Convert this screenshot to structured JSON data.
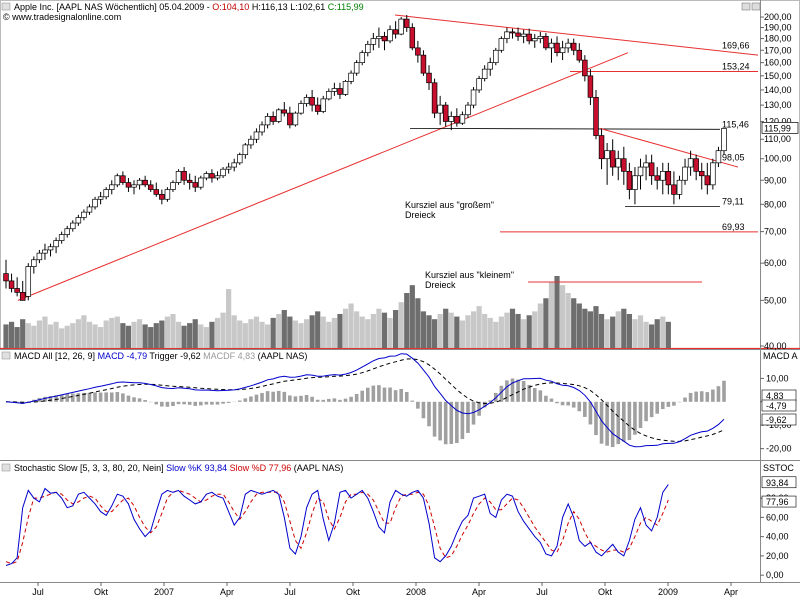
{
  "header": {
    "title_prefix": "Apple Inc. [AAPL NAS  Wöchentlich] 05.04.2009 - ",
    "open": "O:104,10",
    "high": "H:116,13",
    "low": "L:102,61",
    "close": "C:115,99",
    "source": "© www.tradesignalonline.com"
  },
  "colors": {
    "candle_up": "#ffffff",
    "candle_down": "#c8102e",
    "trendline": "#e83030",
    "macd": "#0000cc",
    "trigger": "#000000",
    "histogram": "#a0a0a0",
    "stoch_k": "#0000cc",
    "stoch_d": "#cc0000",
    "annotation_text": "#1010c0",
    "level_text": "#e83030"
  },
  "chart_data": [
    {
      "type": "candlestick",
      "panel": "price",
      "ylim": [
        40,
        205
      ],
      "yscale": "log",
      "yticks": [
        "40,00",
        "50,00",
        "60,00",
        "70,00",
        "80,00",
        "90,00",
        "100,00",
        "110,00",
        "120,00",
        "130,00",
        "140,00",
        "150,00",
        "160,00",
        "170,00",
        "180,00",
        "190,00",
        "200,00"
      ],
      "current_value": "115,99",
      "candles": [
        [
          57,
          61,
          53,
          55
        ],
        [
          55,
          57,
          52,
          53
        ],
        [
          53,
          56,
          51,
          52
        ],
        [
          52,
          55,
          50,
          50
        ],
        [
          51,
          60,
          50,
          59
        ],
        [
          59,
          62,
          57,
          61
        ],
        [
          61,
          64,
          60,
          63
        ],
        [
          63,
          66,
          61,
          64
        ],
        [
          64,
          66,
          62,
          65
        ],
        [
          65,
          68,
          63,
          67
        ],
        [
          67,
          70,
          66,
          69
        ],
        [
          69,
          72,
          68,
          71
        ],
        [
          71,
          74,
          70,
          73
        ],
        [
          73,
          76,
          72,
          75
        ],
        [
          75,
          78,
          74,
          77
        ],
        [
          77,
          80,
          76,
          79
        ],
        [
          79,
          83,
          78,
          82
        ],
        [
          82,
          85,
          80,
          83
        ],
        [
          83,
          87,
          82,
          86
        ],
        [
          86,
          90,
          84,
          88
        ],
        [
          88,
          93,
          87,
          92
        ],
        [
          92,
          94,
          88,
          89
        ],
        [
          89,
          91,
          85,
          87
        ],
        [
          87,
          90,
          84,
          88
        ],
        [
          88,
          91,
          86,
          90
        ],
        [
          90,
          92,
          87,
          88
        ],
        [
          88,
          90,
          85,
          86
        ],
        [
          86,
          89,
          83,
          84
        ],
        [
          84,
          86,
          80,
          82
        ],
        [
          82,
          87,
          81,
          86
        ],
        [
          86,
          90,
          85,
          89
        ],
        [
          89,
          95,
          88,
          94
        ],
        [
          94,
          96,
          88,
          90
        ],
        [
          90,
          93,
          86,
          89
        ],
        [
          89,
          92,
          85,
          87
        ],
        [
          87,
          92,
          86,
          91
        ],
        [
          91,
          94,
          90,
          93
        ],
        [
          93,
          95,
          89,
          91
        ],
        [
          91,
          94,
          90,
          92
        ],
        [
          92,
          96,
          91,
          95
        ],
        [
          95,
          98,
          93,
          96
        ],
        [
          96,
          100,
          94,
          98
        ],
        [
          98,
          103,
          97,
          102
        ],
        [
          102,
          108,
          100,
          107
        ],
        [
          107,
          112,
          105,
          110
        ],
        [
          110,
          116,
          108,
          114
        ],
        [
          114,
          120,
          112,
          118
        ],
        [
          118,
          125,
          116,
          123
        ],
        [
          123,
          126,
          118,
          120
        ],
        [
          120,
          128,
          119,
          127
        ],
        [
          127,
          132,
          123,
          125
        ],
        [
          125,
          129,
          116,
          118
        ],
        [
          118,
          126,
          117,
          125
        ],
        [
          125,
          133,
          124,
          131
        ],
        [
          131,
          137,
          129,
          135
        ],
        [
          135,
          140,
          126,
          130
        ],
        [
          130,
          135,
          124,
          126
        ],
        [
          126,
          136,
          125,
          134
        ],
        [
          134,
          141,
          133,
          139
        ],
        [
          139,
          145,
          136,
          141
        ],
        [
          141,
          145,
          134,
          137
        ],
        [
          137,
          147,
          136,
          146
        ],
        [
          146,
          154,
          144,
          152
        ],
        [
          152,
          162,
          150,
          160
        ],
        [
          160,
          170,
          158,
          168
        ],
        [
          168,
          178,
          165,
          175
        ],
        [
          175,
          185,
          170,
          180
        ],
        [
          180,
          190,
          172,
          182
        ],
        [
          182,
          186,
          170,
          178
        ],
        [
          178,
          192,
          176,
          188
        ],
        [
          188,
          196,
          180,
          184
        ],
        [
          184,
          200,
          183,
          198
        ],
        [
          198,
          202,
          186,
          190
        ],
        [
          190,
          194,
          170,
          172
        ],
        [
          172,
          178,
          160,
          166
        ],
        [
          166,
          170,
          150,
          152
        ],
        [
          152,
          158,
          140,
          145
        ],
        [
          145,
          148,
          122,
          125
        ],
        [
          125,
          136,
          118,
          130
        ],
        [
          130,
          132,
          117,
          120
        ],
        [
          120,
          126,
          115,
          123
        ],
        [
          123,
          128,
          117,
          119
        ],
        [
          119,
          126,
          118,
          124
        ],
        [
          124,
          132,
          122,
          130
        ],
        [
          130,
          142,
          128,
          140
        ],
        [
          140,
          150,
          138,
          148
        ],
        [
          148,
          158,
          146,
          155
        ],
        [
          155,
          164,
          150,
          160
        ],
        [
          160,
          172,
          158,
          170
        ],
        [
          170,
          182,
          168,
          180
        ],
        [
          180,
          190,
          176,
          186
        ],
        [
          186,
          189,
          180,
          185
        ],
        [
          185,
          190,
          178,
          182
        ],
        [
          182,
          188,
          176,
          184
        ],
        [
          184,
          189,
          175,
          178
        ],
        [
          178,
          184,
          172,
          180
        ],
        [
          180,
          186,
          176,
          182
        ],
        [
          182,
          185,
          170,
          172
        ],
        [
          172,
          180,
          160,
          176
        ],
        [
          176,
          182,
          165,
          168
        ],
        [
          168,
          178,
          162,
          172
        ],
        [
          172,
          180,
          168,
          176
        ],
        [
          176,
          180,
          166,
          170
        ],
        [
          170,
          176,
          160,
          162
        ],
        [
          162,
          166,
          146,
          150
        ],
        [
          150,
          155,
          130,
          135
        ],
        [
          135,
          140,
          110,
          112
        ],
        [
          112,
          116,
          95,
          100
        ],
        [
          100,
          108,
          88,
          104
        ],
        [
          104,
          110,
          92,
          96
        ],
        [
          96,
          104,
          90,
          100
        ],
        [
          100,
          106,
          88,
          94
        ],
        [
          94,
          98,
          82,
          86
        ],
        [
          86,
          96,
          80,
          92
        ],
        [
          92,
          100,
          86,
          96
        ],
        [
          96,
          102,
          90,
          98
        ],
        [
          98,
          102,
          88,
          92
        ],
        [
          92,
          96,
          86,
          90
        ],
        [
          90,
          98,
          84,
          94
        ],
        [
          94,
          98,
          84,
          88
        ],
        [
          88,
          94,
          80,
          84
        ],
        [
          84,
          92,
          82,
          90
        ],
        [
          90,
          100,
          88,
          96
        ],
        [
          96,
          104,
          92,
          100
        ],
        [
          100,
          102,
          90,
          94
        ],
        [
          94,
          98,
          86,
          92
        ],
        [
          92,
          98,
          84,
          88
        ],
        [
          88,
          100,
          86,
          98
        ],
        [
          98,
          106,
          96,
          104
        ],
        [
          104,
          116,
          102,
          116
        ]
      ],
      "levels": [
        {
          "label": "169,66",
          "value": 169.66
        },
        {
          "label": "153,24",
          "value": 153.24
        },
        {
          "label": "115,46",
          "value": 115.46
        },
        {
          "label": "98,05",
          "value": 98.05
        },
        {
          "label": "79,11",
          "value": 79.11
        },
        {
          "label": "69,93",
          "value": 69.93
        }
      ],
      "annotations": [
        {
          "text": "Kursziel aus \"großem\"",
          "text2": "Dreieck"
        },
        {
          "text": "Kursziel aus \"kleinem\"",
          "text2": "Dreieck"
        }
      ],
      "volume": [
        18,
        20,
        16,
        22,
        19,
        17,
        21,
        24,
        18,
        20,
        15,
        17,
        19,
        22,
        25,
        20,
        18,
        16,
        21,
        23,
        24,
        19,
        17,
        20,
        22,
        18,
        16,
        19,
        21,
        24,
        26,
        20,
        17,
        19,
        22,
        18,
        16,
        20,
        23,
        27,
        45,
        25,
        21,
        19,
        22,
        24,
        20,
        18,
        23,
        26,
        29,
        24,
        21,
        19,
        22,
        25,
        28,
        24,
        20,
        23,
        26,
        30,
        34,
        28,
        24,
        22,
        26,
        30,
        27,
        23,
        29,
        35,
        42,
        48,
        38,
        28,
        25,
        22,
        26,
        30,
        27,
        24,
        21,
        25,
        28,
        32,
        26,
        23,
        20,
        24,
        27,
        30,
        26,
        22,
        25,
        28,
        34,
        38,
        50,
        55,
        48,
        42,
        38,
        34,
        30,
        28,
        32,
        26,
        22,
        24,
        28,
        30,
        26,
        22,
        25,
        20,
        18,
        22,
        24,
        20
      ]
    },
    {
      "type": "line",
      "panel": "macd",
      "title": "MACD All [12, 26, 9]",
      "series_labels": {
        "macd": "MACD -4,79",
        "trigger": "Trigger -9,62",
        "hist": "MACDF 4,83",
        "tail": "(AAPL NAS)"
      },
      "side_label": "MACD A",
      "ylim": [
        -24,
        17
      ],
      "yticks": [
        "10,00",
        "0,00",
        "-10,00",
        "-20,00"
      ],
      "markers": [
        "4,83",
        "-4,79",
        "-9,62"
      ]
    },
    {
      "type": "line",
      "panel": "stochastic",
      "title": "Stochastic Slow [5, 3, 3, 80, 20, Nein]",
      "series_labels": {
        "k": "Slow %K 93,84",
        "d": "Slow %D 77,96",
        "tail": "(AAPL NAS)"
      },
      "side_label": "SSTOC",
      "ylim": [
        -5,
        105
      ],
      "yticks": [
        "80,00",
        "60,00",
        "40,00",
        "20,00",
        "0,00"
      ],
      "markers": [
        "93,84",
        "77,96"
      ],
      "k": [
        10,
        12,
        18,
        70,
        88,
        80,
        76,
        90,
        85,
        86,
        80,
        70,
        72,
        84,
        86,
        80,
        74,
        66,
        62,
        72,
        84,
        82,
        74,
        58,
        48,
        40,
        46,
        66,
        84,
        88,
        86,
        88,
        82,
        78,
        74,
        76,
        84,
        86,
        82,
        80,
        66,
        52,
        60,
        84,
        88,
        86,
        84,
        86,
        88,
        84,
        60,
        28,
        22,
        40,
        70,
        84,
        88,
        58,
        36,
        54,
        86,
        88,
        80,
        84,
        88,
        80,
        66,
        50,
        44,
        76,
        88,
        84,
        82,
        86,
        88,
        80,
        54,
        18,
        14,
        20,
        30,
        44,
        56,
        62,
        80,
        82,
        84,
        64,
        60,
        78,
        84,
        82,
        66,
        56,
        48,
        40,
        34,
        22,
        20,
        30,
        60,
        74,
        60,
        36,
        30,
        34,
        24,
        20,
        26,
        32,
        24,
        20,
        36,
        58,
        70,
        52,
        46,
        60,
        86,
        94
      ],
      "d": [
        14,
        12,
        14,
        34,
        60,
        80,
        80,
        82,
        84,
        86,
        84,
        78,
        74,
        76,
        80,
        82,
        80,
        72,
        66,
        66,
        72,
        78,
        80,
        72,
        60,
        50,
        44,
        50,
        64,
        80,
        86,
        88,
        86,
        84,
        80,
        76,
        78,
        82,
        84,
        84,
        76,
        66,
        58,
        66,
        76,
        84,
        86,
        86,
        86,
        86,
        76,
        56,
        36,
        28,
        44,
        64,
        80,
        76,
        58,
        48,
        60,
        76,
        84,
        84,
        86,
        84,
        78,
        66,
        54,
        54,
        70,
        82,
        84,
        84,
        86,
        84,
        72,
        50,
        28,
        18,
        20,
        30,
        42,
        52,
        64,
        74,
        80,
        76,
        68,
        68,
        74,
        80,
        78,
        70,
        60,
        50,
        42,
        34,
        26,
        24,
        36,
        54,
        66,
        58,
        44,
        34,
        30,
        26,
        24,
        26,
        26,
        24,
        28,
        40,
        54,
        60,
        56,
        52,
        64,
        78
      ]
    }
  ],
  "x_axis": {
    "labels": [
      "Jul",
      "Okt",
      "2007",
      "Apr",
      "Jul",
      "Okt",
      "2008",
      "Apr",
      "Jul",
      "Okt",
      "2009",
      "Apr"
    ]
  }
}
